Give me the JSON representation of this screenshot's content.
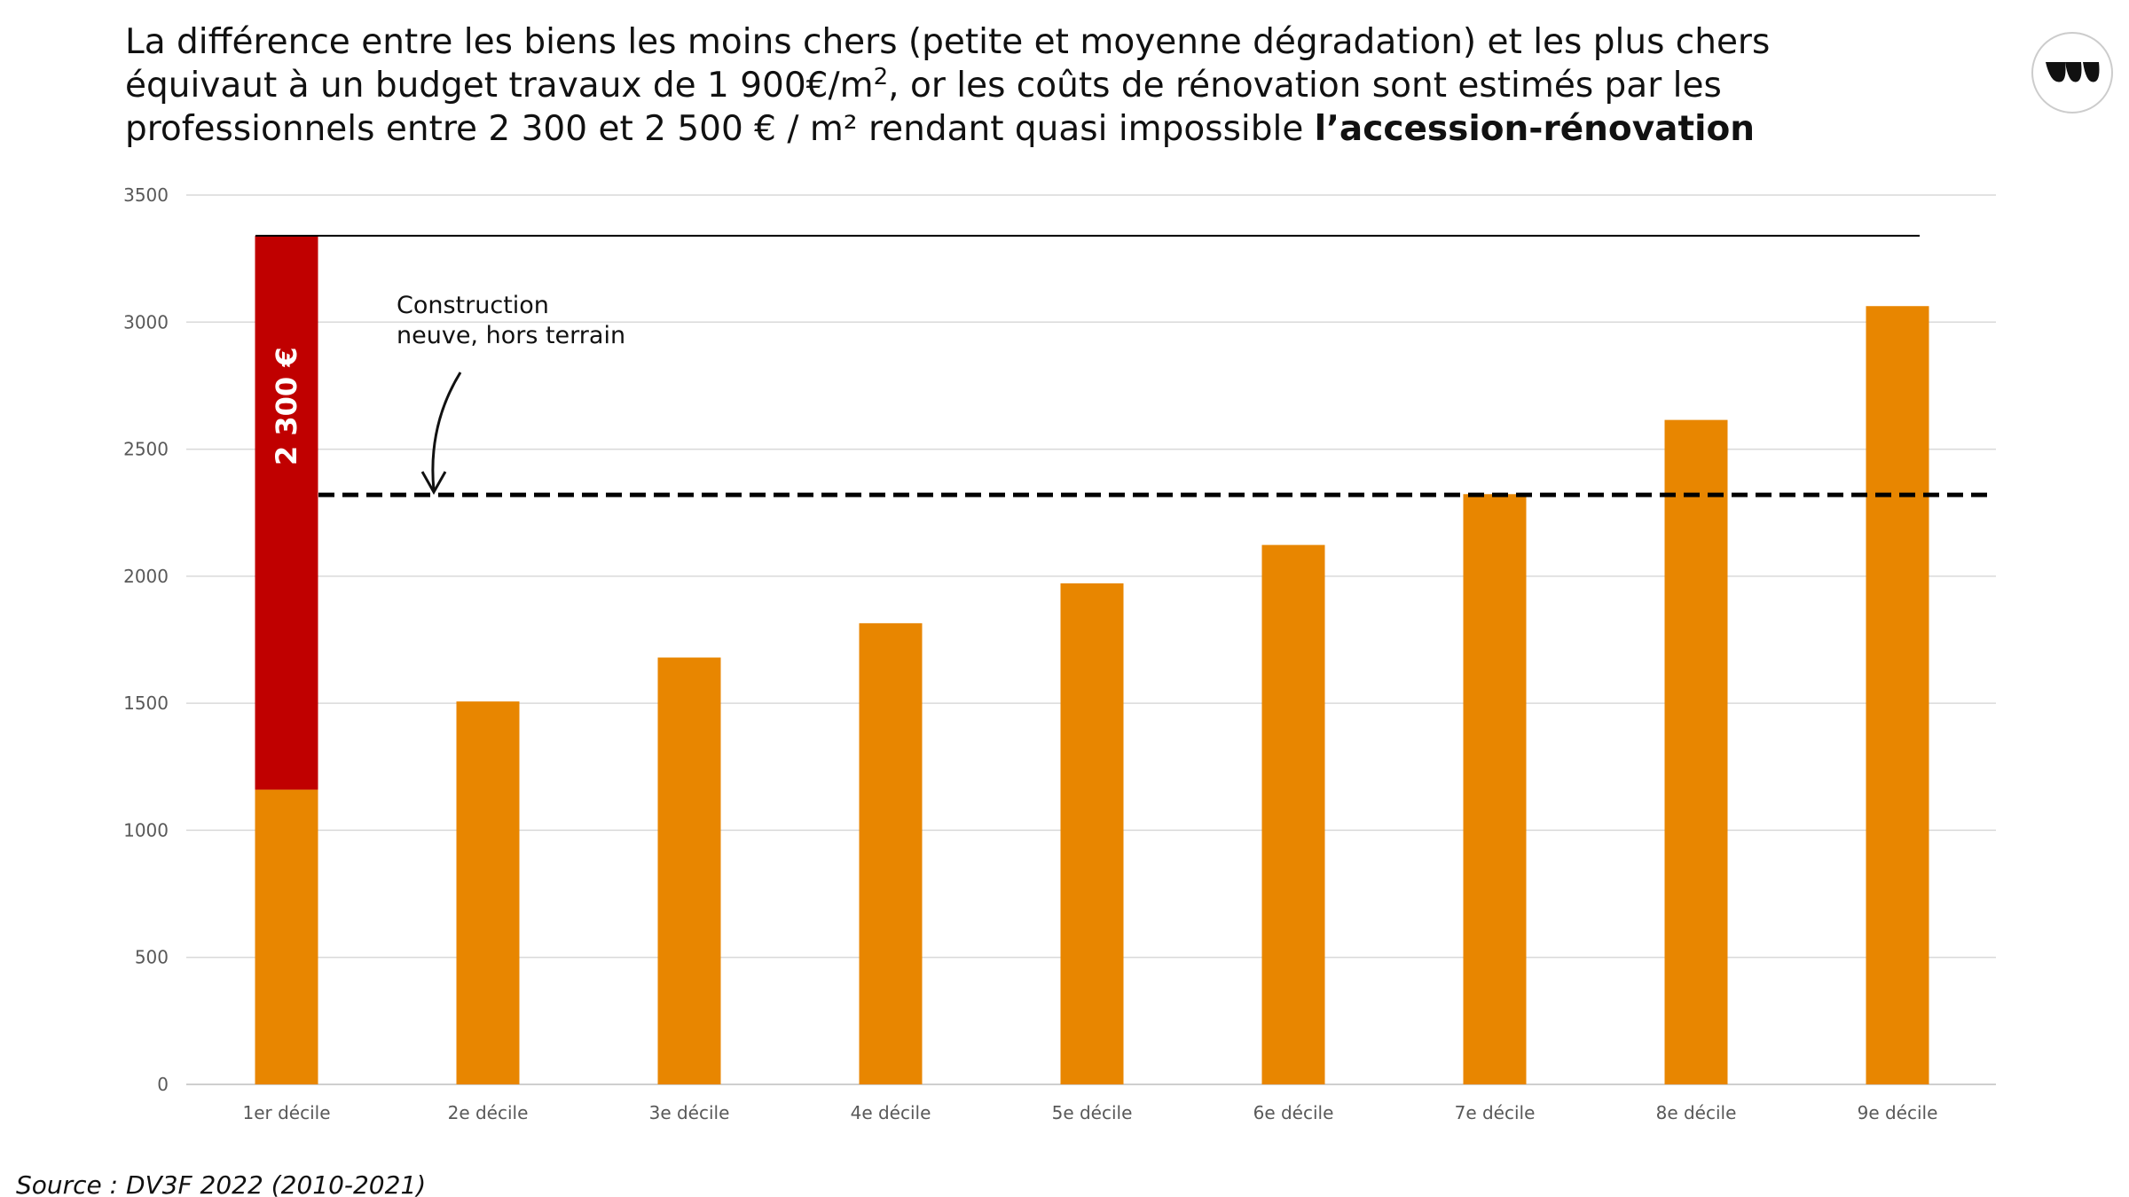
{
  "chart_data": {
    "type": "bar",
    "title": [
      "La différence entre les biens les moins chers (petite et moyenne dégradation) et les plus chers",
      "équivaut à un budget travaux de 1 900€/m",
      "2",
      ", or les coûts de rénovation sont estimés par les",
      "professionnels entre 2 300 et 2 500 € / m² rendant quasi impossible ",
      "l’accession-rénovation"
    ],
    "categories": [
      "1er décile",
      "2e décile",
      "3e décile",
      "4e décile",
      "5e décile",
      "6e décile",
      "7e décile",
      "8e décile",
      "9e décile"
    ],
    "series": [
      {
        "color": "#e88600",
        "values": [
          1160,
          1507,
          1680,
          1815,
          1972,
          2123,
          2323,
          2615,
          3063
        ]
      },
      {
        "color": "#c00000",
        "values": [
          2180,
          null,
          null,
          null,
          null,
          null,
          null,
          null,
          null
        ]
      }
    ],
    "stacked": true,
    "ylim": [
      0,
      3500
    ],
    "yticks": [
      0,
      500,
      1000,
      1500,
      2000,
      2500,
      3000,
      3500
    ],
    "grid": true,
    "hlines": [
      {
        "value": 3340,
        "color": "#000000",
        "dashed": false
      },
      {
        "value": 2320,
        "color": "#000000",
        "dashed": true
      }
    ],
    "bar_annotation": "2 300 €",
    "annotation": [
      "Construction",
      "neuve, hors terrain"
    ],
    "source": "Source : DV3F 2022 (2010-2021)"
  }
}
